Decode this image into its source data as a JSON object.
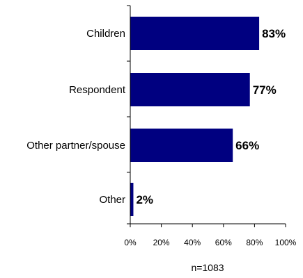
{
  "chart_data": {
    "type": "bar",
    "orientation": "horizontal",
    "categories": [
      "Children",
      "Respondent",
      "Other partner/spouse",
      "Other"
    ],
    "values": [
      83,
      77,
      66,
      2
    ],
    "value_labels": [
      "83%",
      "77%",
      "66%",
      "2%"
    ],
    "x_ticks": [
      "0%",
      "20%",
      "40%",
      "60%",
      "80%",
      "100%"
    ],
    "xlim": [
      0,
      100
    ],
    "grid": false,
    "legend": "none",
    "bar_color": "#000080",
    "note": "n=1083"
  }
}
